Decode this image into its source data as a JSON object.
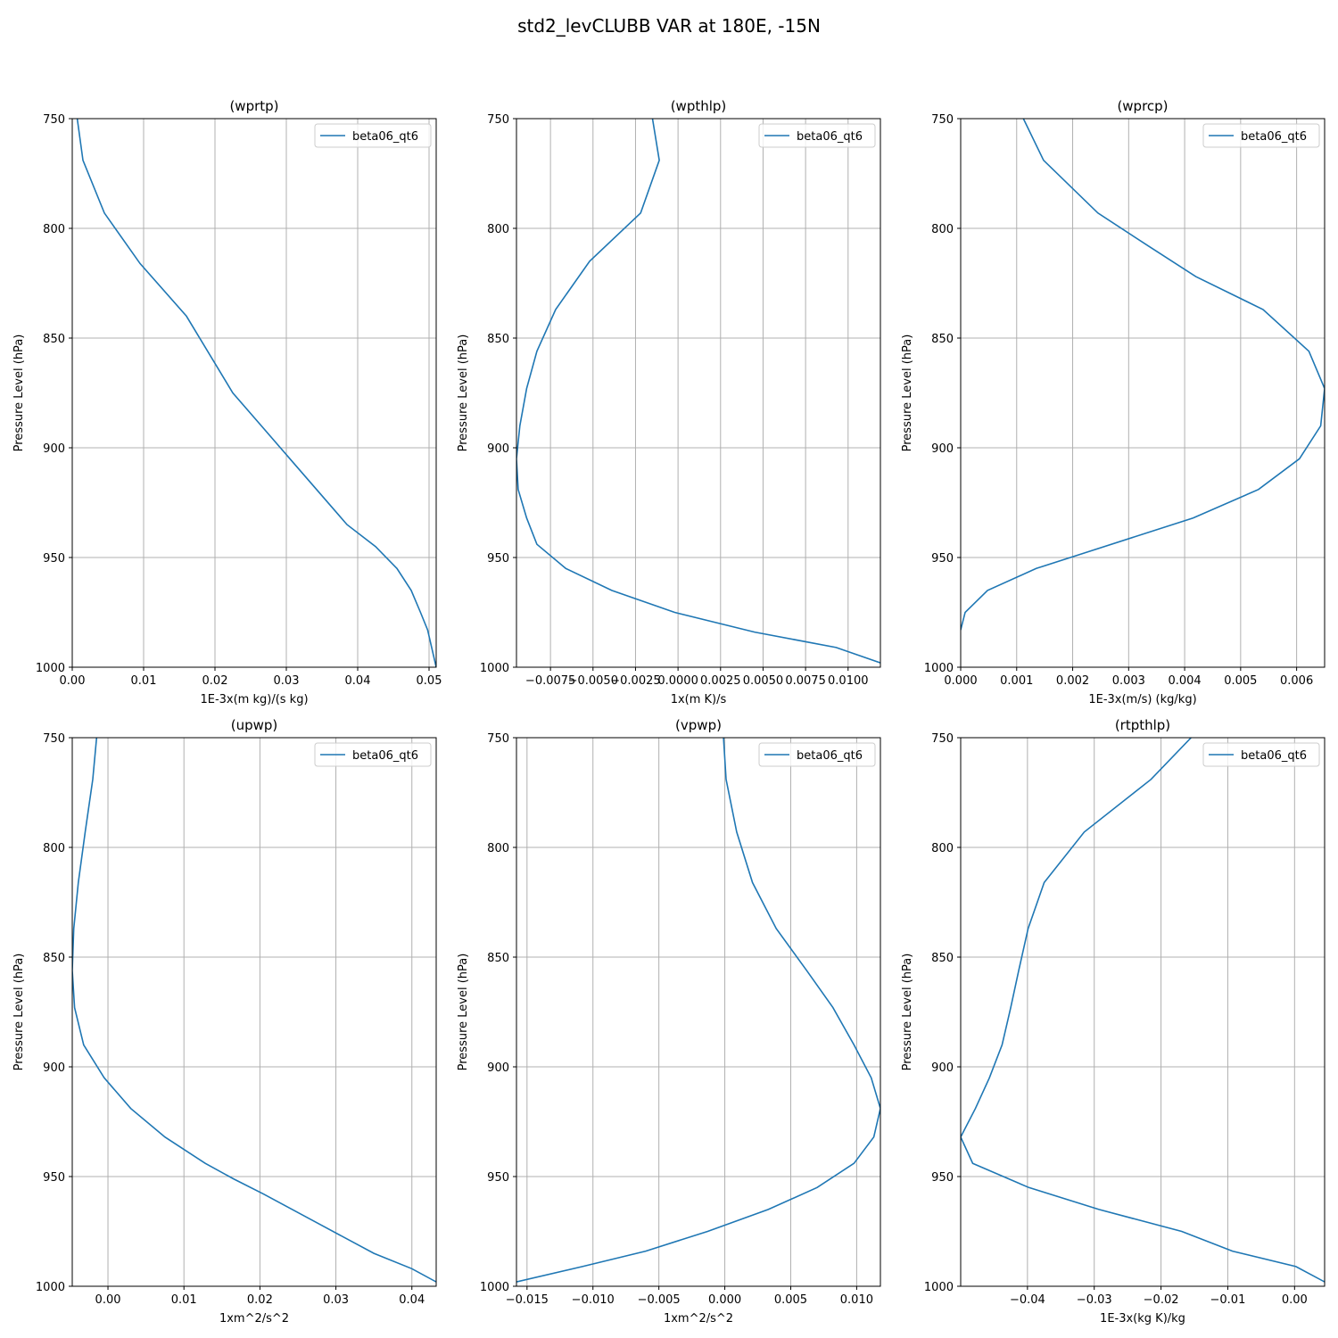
{
  "figure": {
    "suptitle": "std2_levCLUBB VAR at 180E, -15N"
  },
  "chart_data": [
    {
      "type": "line",
      "title": "(wprtp)",
      "xlabel": "1E-3x(m kg)/(s kg)",
      "ylabel": "Pressure Level (hPa)",
      "xlim": [
        0.0,
        0.051
      ],
      "ylim": [
        1000,
        750
      ],
      "xticks": [
        0.0,
        0.01,
        0.02,
        0.03,
        0.04,
        0.05
      ],
      "xtick_labels": [
        "0.00",
        "0.01",
        "0.02",
        "0.03",
        "0.04",
        "0.05"
      ],
      "yticks": [
        750,
        800,
        850,
        900,
        950,
        1000
      ],
      "ytick_labels": [
        "750",
        "800",
        "850",
        "900",
        "950",
        "1000"
      ],
      "grid": true,
      "legend_position": "upper right",
      "series": [
        {
          "name": "beta06_qt6",
          "color": "#1f77b4",
          "x": [
            0.0007,
            0.0015,
            0.0045,
            0.0095,
            0.016,
            0.0225,
            0.0265,
            0.0305,
            0.0345,
            0.0385,
            0.0425,
            0.0455,
            0.0475,
            0.0488,
            0.0498,
            0.051
          ],
          "y": [
            750,
            769,
            793,
            816,
            840,
            875,
            890,
            905,
            920,
            935,
            945,
            955,
            965,
            975,
            983,
            1000
          ]
        }
      ]
    },
    {
      "type": "line",
      "title": "(wpthlp)",
      "xlabel": "1x(m K)/s",
      "ylabel": "Pressure Level (hPa)",
      "xlim": [
        -0.0095,
        0.0119
      ],
      "ylim": [
        1000,
        750
      ],
      "xticks": [
        -0.0075,
        -0.005,
        -0.0025,
        0.0,
        0.0025,
        0.005,
        0.0075,
        0.01
      ],
      "xtick_labels": [
        "−0.0075",
        "−0.0050",
        "−0.0025",
        "0.0000",
        "0.0025",
        "0.0050",
        "0.0075",
        "0.0100"
      ],
      "yticks": [
        750,
        800,
        850,
        900,
        950,
        1000
      ],
      "ytick_labels": [
        "750",
        "800",
        "850",
        "900",
        "950",
        "1000"
      ],
      "grid": true,
      "legend_position": "upper right",
      "series": [
        {
          "name": "beta06_qt6",
          "color": "#1f77b4",
          "x": [
            -0.0015,
            -0.0011,
            -0.0022,
            -0.0052,
            -0.0072,
            -0.0083,
            -0.0089,
            -0.0093,
            -0.0095,
            -0.0094,
            -0.0089,
            -0.0083,
            -0.0066,
            -0.0039,
            -0.0002,
            0.0045,
            0.0093,
            0.0119
          ],
          "y": [
            750,
            769,
            793,
            815,
            837,
            856,
            873,
            890,
            905,
            919,
            932,
            944,
            955,
            965,
            975,
            984,
            991,
            998
          ]
        }
      ]
    },
    {
      "type": "line",
      "title": "(wprcp)",
      "xlabel": "1E-3x(m/s) (kg/kg)",
      "ylabel": "Pressure Level (hPa)",
      "xlim": [
        0.0,
        0.0065
      ],
      "ylim": [
        1000,
        750
      ],
      "xticks": [
        0.0,
        0.001,
        0.002,
        0.003,
        0.004,
        0.005,
        0.006
      ],
      "xtick_labels": [
        "0.000",
        "0.001",
        "0.002",
        "0.003",
        "0.004",
        "0.005",
        "0.006"
      ],
      "yticks": [
        750,
        800,
        850,
        900,
        950,
        1000
      ],
      "ytick_labels": [
        "750",
        "800",
        "850",
        "900",
        "950",
        "1000"
      ],
      "grid": true,
      "legend_position": "upper right",
      "series": [
        {
          "name": "beta06_qt6",
          "color": "#1f77b4",
          "x": [
            0.00112,
            0.00148,
            0.00245,
            0.00335,
            0.0042,
            0.0054,
            0.00622,
            0.0065,
            0.00643,
            0.00605,
            0.00532,
            0.00415,
            0.0022,
            0.00135,
            0.00048,
            8e-05,
            0.0
          ],
          "y": [
            750,
            769,
            793,
            808,
            822,
            837,
            856,
            873,
            890,
            905,
            919,
            932,
            948,
            955,
            965,
            975,
            983
          ]
        }
      ]
    },
    {
      "type": "line",
      "title": "(upwp)",
      "xlabel": "1xm^2/s^2",
      "ylabel": "Pressure Level (hPa)",
      "xlim": [
        -0.0047,
        0.0432
      ],
      "ylim": [
        1000,
        750
      ],
      "xticks": [
        0.0,
        0.01,
        0.02,
        0.03,
        0.04
      ],
      "xtick_labels": [
        "0.00",
        "0.01",
        "0.02",
        "0.03",
        "0.04"
      ],
      "yticks": [
        750,
        800,
        850,
        900,
        950,
        1000
      ],
      "ytick_labels": [
        "750",
        "800",
        "850",
        "900",
        "950",
        "1000"
      ],
      "grid": true,
      "legend_position": "upper right",
      "series": [
        {
          "name": "beta06_qt6",
          "color": "#1f77b4",
          "x": [
            -0.0015,
            -0.002,
            -0.003,
            -0.0039,
            -0.0045,
            -0.0047,
            -0.0044,
            -0.0032,
            -0.0005,
            0.003,
            0.0075,
            0.0128,
            0.0165,
            0.0205,
            0.028,
            0.035,
            0.04,
            0.0432
          ],
          "y": [
            750,
            769,
            793,
            816,
            837,
            856,
            873,
            890,
            905,
            919,
            932,
            944,
            951,
            958,
            972,
            985,
            992,
            998
          ]
        }
      ]
    },
    {
      "type": "line",
      "title": "(vpwp)",
      "xlabel": "1xm^2/s^2",
      "ylabel": "Pressure Level (hPa)",
      "xlim": [
        -0.0158,
        0.0118
      ],
      "ylim": [
        1000,
        750
      ],
      "xticks": [
        -0.015,
        -0.01,
        -0.005,
        0.0,
        0.005,
        0.01
      ],
      "xtick_labels": [
        "−0.015",
        "−0.010",
        "−0.005",
        "0.000",
        "0.005",
        "0.010"
      ],
      "yticks": [
        750,
        800,
        850,
        900,
        950,
        1000
      ],
      "ytick_labels": [
        "750",
        "800",
        "850",
        "900",
        "950",
        "1000"
      ],
      "grid": true,
      "legend_position": "upper right",
      "series": [
        {
          "name": "beta06_qt6",
          "color": "#1f77b4",
          "x": [
            -0.0001,
            0.0001,
            0.0009,
            0.0021,
            0.0039,
            0.0062,
            0.0082,
            0.0098,
            0.0111,
            0.0118,
            0.0113,
            0.0098,
            0.007,
            0.0033,
            -0.0013,
            -0.006,
            -0.0108,
            -0.0158
          ],
          "y": [
            750,
            769,
            793,
            816,
            837,
            856,
            873,
            890,
            905,
            919,
            932,
            944,
            955,
            965,
            975,
            984,
            991,
            998
          ]
        }
      ]
    },
    {
      "type": "line",
      "title": "(rtpthlp)",
      "xlabel": "1E-3x(kg K)/kg",
      "ylabel": "Pressure Level (hPa)",
      "xlim": [
        -0.05,
        0.0045
      ],
      "ylim": [
        1000,
        750
      ],
      "xticks": [
        -0.04,
        -0.03,
        -0.02,
        -0.01,
        0.0
      ],
      "xtick_labels": [
        "−0.04",
        "−0.03",
        "−0.02",
        "−0.01",
        "0.00"
      ],
      "yticks": [
        750,
        800,
        850,
        900,
        950,
        1000
      ],
      "ytick_labels": [
        "750",
        "800",
        "850",
        "900",
        "950",
        "1000"
      ],
      "grid": true,
      "legend_position": "upper right",
      "series": [
        {
          "name": "beta06_qt6",
          "color": "#1f77b4",
          "x": [
            -0.0155,
            -0.0215,
            -0.0315,
            -0.0375,
            -0.0399,
            -0.0413,
            -0.0425,
            -0.0438,
            -0.0457,
            -0.0478,
            -0.05,
            -0.0482,
            -0.0398,
            -0.0293,
            -0.0169,
            -0.0093,
            0.0002,
            0.0045
          ],
          "y": [
            750,
            769,
            793,
            816,
            837,
            856,
            873,
            890,
            905,
            919,
            932,
            944,
            955,
            965,
            975,
            984,
            991,
            998
          ]
        }
      ]
    }
  ]
}
